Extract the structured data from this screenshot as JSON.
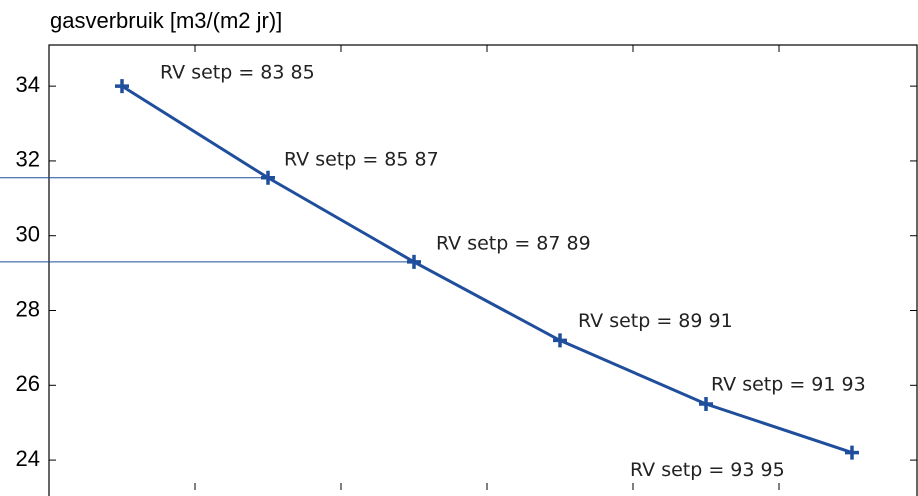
{
  "chart_data": {
    "type": "line",
    "title": "gasverbruik [m3/(m2 jr)]",
    "categories": [
      null,
      null,
      null,
      null,
      null,
      null
    ],
    "series": [
      {
        "color": "#1f4e9c",
        "values": [
          34.0,
          31.55,
          29.3,
          27.2,
          25.5,
          24.2
        ]
      }
    ],
    "annotations": [
      "RV setp = 83 85",
      "RV setp = 85 87",
      "RV setp = 87 89",
      "RV setp = 89 91",
      "RV setp = 91 93",
      "RV setp = 93 95"
    ],
    "ylim": [
      23.2,
      35.1
    ],
    "yticks": [
      24,
      26,
      28,
      30,
      32,
      34
    ],
    "grid": false
  }
}
